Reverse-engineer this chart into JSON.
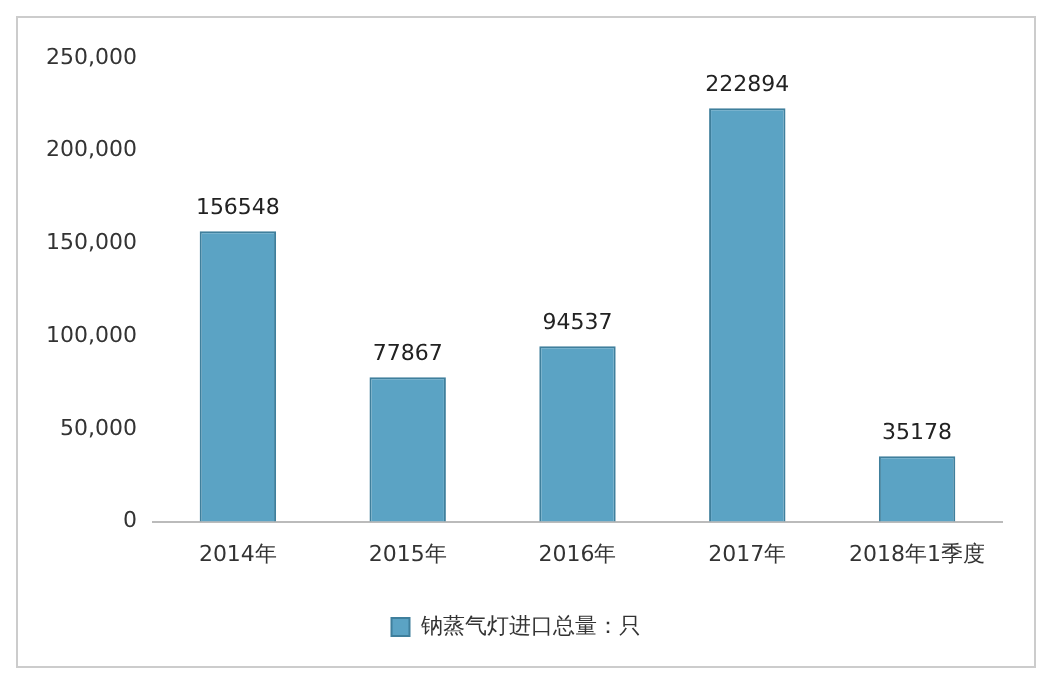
{
  "chart_data": {
    "type": "bar",
    "categories": [
      "2014年",
      "2015年",
      "2016年",
      "2017年",
      "2018年1季度"
    ],
    "series": [
      {
        "name": "钠蒸气灯进口总量：只",
        "color": "#5ba3c4",
        "values": [
          156548,
          77867,
          94537,
          222894,
          35178
        ]
      }
    ],
    "ylim": [
      0,
      250000
    ],
    "yticks": [
      {
        "value": 0,
        "label": "0"
      },
      {
        "value": 50000,
        "label": "50,000"
      },
      {
        "value": 100000,
        "label": "100,000"
      },
      {
        "value": 150000,
        "label": "150,000"
      },
      {
        "value": 200000,
        "label": "200,000"
      },
      {
        "value": 250000,
        "label": "250,000"
      }
    ],
    "data_labels": true,
    "legend": "bottom",
    "grid": false
  }
}
